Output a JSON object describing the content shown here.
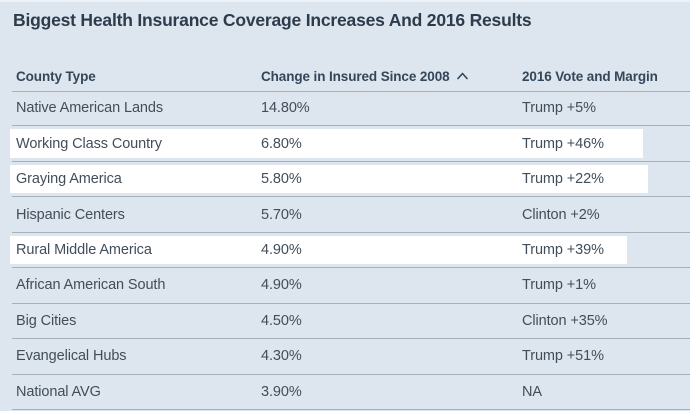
{
  "chart_data": {
    "type": "table",
    "title": "Biggest Health Insurance Coverage Increases And 2016 Results",
    "columns": [
      "County Type",
      "Change in Insured Since 2008",
      "2016 Vote and Margin"
    ],
    "sort": {
      "column": "Change in Insured Since 2008",
      "direction": "ascending"
    },
    "rows": [
      {
        "county_type": "Native American Lands",
        "change_since_2008": "14.80%",
        "vote_margin": "Trump +5%",
        "highlighted": false
      },
      {
        "county_type": "Working Class Country",
        "change_since_2008": "6.80%",
        "vote_margin": "Trump +46%",
        "highlighted": true
      },
      {
        "county_type": "Graying America",
        "change_since_2008": "5.80%",
        "vote_margin": "Trump +22%",
        "highlighted": true
      },
      {
        "county_type": "Hispanic Centers",
        "change_since_2008": "5.70%",
        "vote_margin": "Clinton +2%",
        "highlighted": false
      },
      {
        "county_type": "Rural Middle America",
        "change_since_2008": "4.90%",
        "vote_margin": "Trump +39%",
        "highlighted": true
      },
      {
        "county_type": "African American South",
        "change_since_2008": "4.90%",
        "vote_margin": "Trump +1%",
        "highlighted": false
      },
      {
        "county_type": "Big Cities",
        "change_since_2008": "4.50%",
        "vote_margin": "Clinton +35%",
        "highlighted": false
      },
      {
        "county_type": "Evangelical Hubs",
        "change_since_2008": "4.30%",
        "vote_margin": "Trump +51%",
        "highlighted": false
      },
      {
        "county_type": "National AVG",
        "change_since_2008": "3.90%",
        "vote_margin": "NA",
        "highlighted": false
      }
    ]
  },
  "icons": {
    "sort_ascending": "chevron-up-icon"
  },
  "colors": {
    "background": "#dde5ee",
    "row_highlight": "#ffffff",
    "divider": "#a6b0b9",
    "heading_text": "#2d3c4c",
    "header_text": "#33475b",
    "body_text": "#414e5a"
  }
}
